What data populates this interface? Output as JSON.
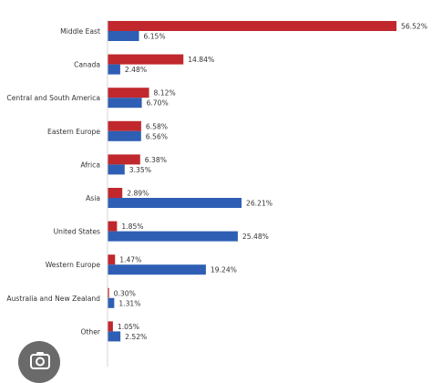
{
  "chart_data": {
    "type": "bar",
    "orientation": "horizontal",
    "categories": [
      "Middle East",
      "Canada",
      "Central and South America",
      "Eastern Europe",
      "Africa",
      "Asia",
      "United States",
      "Western Europe",
      "Australia and New Zealand",
      "Other"
    ],
    "series": [
      {
        "color": "#c0282d",
        "values": [
          56.52,
          14.84,
          8.12,
          6.58,
          6.38,
          2.89,
          1.85,
          1.47,
          0.3,
          1.05
        ],
        "labels": [
          "56.52%",
          "14.84%",
          "8.12%",
          "6.58%",
          "6.38%",
          "2.89%",
          "1.85%",
          "1.47%",
          "0.30%",
          "1.05%"
        ]
      },
      {
        "color": "#2e5fb4",
        "values": [
          6.15,
          2.48,
          6.7,
          6.56,
          3.35,
          26.21,
          25.48,
          19.24,
          1.31,
          2.52
        ],
        "labels": [
          "6.15%",
          "2.48%",
          "6.70%",
          "6.56%",
          "3.35%",
          "26.21%",
          "25.48%",
          "19.24%",
          "1.31%",
          "2.52%"
        ]
      }
    ],
    "xlim": [
      0,
      56.52
    ],
    "grid": false,
    "legend": "none"
  },
  "overlay": {
    "icon": "lens-icon"
  }
}
